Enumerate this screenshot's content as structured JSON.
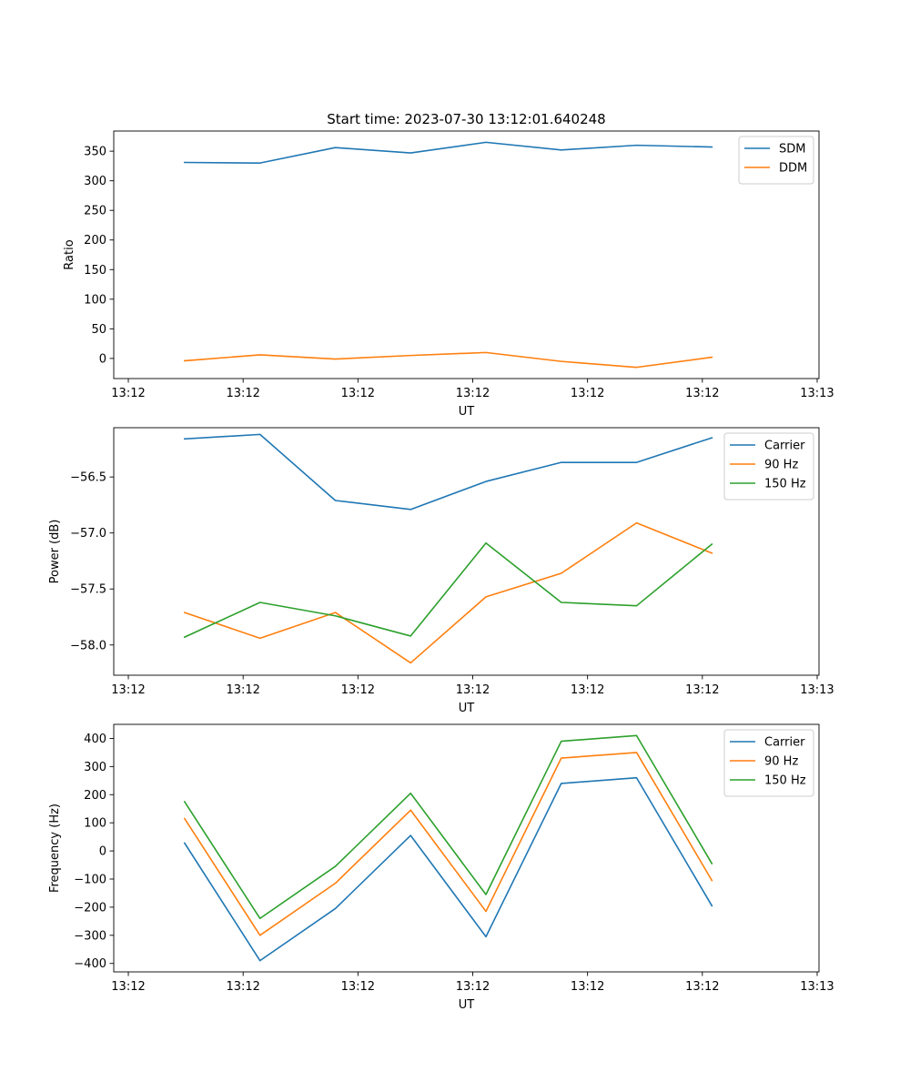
{
  "chart_data": [
    {
      "type": "line",
      "title": "Start time: 2023-07-30 13:12:01.640248",
      "xlabel": "UT",
      "ylabel": "Ratio",
      "xticks": [
        "13:12",
        "13:12",
        "13:12",
        "13:12",
        "13:12",
        "13:12",
        "13:13"
      ],
      "xtick_values": [
        0,
        1,
        2,
        3,
        4,
        5,
        6
      ],
      "xlim": [
        -0.127,
        6.016
      ],
      "ylim": [
        -34,
        384
      ],
      "yticks": [
        0,
        50,
        100,
        150,
        200,
        250,
        300,
        350
      ],
      "ytick_labels": [
        "0",
        "50",
        "100",
        "150",
        "200",
        "250",
        "300",
        "350"
      ],
      "x": [
        0.49,
        1.147,
        1.803,
        2.459,
        3.115,
        3.771,
        4.427,
        5.083
      ],
      "legend": "top-right",
      "series": [
        {
          "name": "SDM",
          "color": "#1f77b4",
          "values": [
            331,
            330,
            356,
            347,
            365,
            352,
            360,
            357
          ]
        },
        {
          "name": "DDM",
          "color": "#ff7f0e",
          "values": [
            -4,
            6,
            -1,
            5,
            10,
            -5,
            -15,
            2
          ]
        }
      ]
    },
    {
      "type": "line",
      "title": "",
      "xlabel": "UT",
      "ylabel": "Power (dB)",
      "xticks": [
        "13:12",
        "13:12",
        "13:12",
        "13:12",
        "13:12",
        "13:12",
        "13:13"
      ],
      "xtick_values": [
        0,
        1,
        2,
        3,
        4,
        5,
        6
      ],
      "xlim": [
        -0.127,
        6.016
      ],
      "ylim": [
        -58.27,
        -56.06
      ],
      "yticks": [
        -58.0,
        -57.5,
        -57.0,
        -56.5
      ],
      "ytick_labels": [
        "−58.0",
        "−57.5",
        "−57.0",
        "−56.5"
      ],
      "x": [
        0.49,
        1.147,
        1.803,
        2.459,
        3.115,
        3.771,
        4.427,
        5.083
      ],
      "legend": "top-right",
      "series": [
        {
          "name": "Carrier",
          "color": "#1f77b4",
          "values": [
            -56.16,
            -56.12,
            -56.71,
            -56.79,
            -56.54,
            -56.37,
            -56.37,
            -56.15
          ]
        },
        {
          "name": "90 Hz",
          "color": "#ff7f0e",
          "values": [
            -57.71,
            -57.94,
            -57.71,
            -58.16,
            -57.57,
            -57.36,
            -56.91,
            -57.18
          ]
        },
        {
          "name": "150 Hz",
          "color": "#2ca02c",
          "values": [
            -57.93,
            -57.62,
            -57.74,
            -57.92,
            -57.09,
            -57.62,
            -57.65,
            -57.1
          ]
        }
      ]
    },
    {
      "type": "line",
      "title": "",
      "xlabel": "UT",
      "ylabel": "Frequency (Hz)",
      "xticks": [
        "13:12",
        "13:12",
        "13:12",
        "13:12",
        "13:12",
        "13:12",
        "13:13"
      ],
      "xtick_values": [
        0,
        1,
        2,
        3,
        4,
        5,
        6
      ],
      "xlim": [
        -0.127,
        6.016
      ],
      "ylim": [
        -430,
        450
      ],
      "yticks": [
        -400,
        -300,
        -200,
        -100,
        0,
        100,
        200,
        300,
        400
      ],
      "ytick_labels": [
        "−400",
        "−300",
        "−200",
        "−100",
        "0",
        "100",
        "200",
        "300",
        "400"
      ],
      "x": [
        0.49,
        1.147,
        1.803,
        2.459,
        3.115,
        3.771,
        4.427,
        5.083
      ],
      "legend": "top-right",
      "series": [
        {
          "name": "Carrier",
          "color": "#1f77b4",
          "values": [
            28,
            -390,
            -205,
            55,
            -305,
            240,
            260,
            -195
          ]
        },
        {
          "name": "90 Hz",
          "color": "#ff7f0e",
          "values": [
            115,
            -300,
            -115,
            145,
            -215,
            330,
            350,
            -105
          ]
        },
        {
          "name": "150 Hz",
          "color": "#2ca02c",
          "values": [
            175,
            -240,
            -55,
            205,
            -155,
            390,
            410,
            -45
          ]
        }
      ]
    }
  ]
}
